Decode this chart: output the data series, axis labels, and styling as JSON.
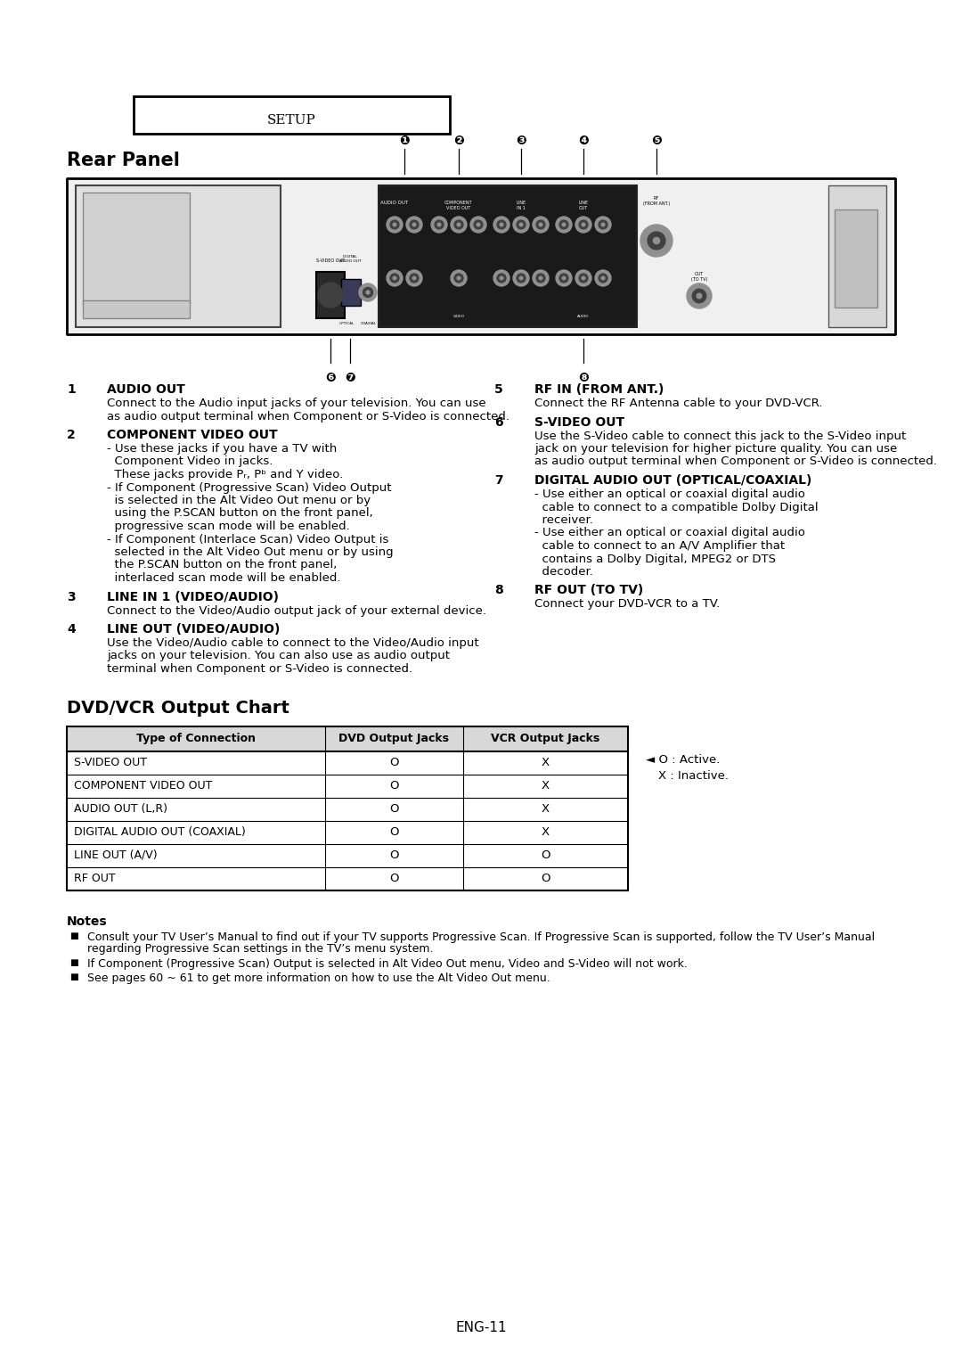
{
  "bg_color": "#ffffff",
  "setup_text": "SETUP",
  "rear_panel_title": "Rear Panel",
  "dvd_chart_title": "DVD/VCR Output Chart",
  "table_headers": [
    "Type of Connection",
    "DVD Output Jacks",
    "VCR Output Jacks"
  ],
  "table_rows": [
    [
      "S-VIDEO OUT",
      "O",
      "X"
    ],
    [
      "COMPONENT VIDEO OUT",
      "O",
      "X"
    ],
    [
      "AUDIO OUT (L,R)",
      "O",
      "X"
    ],
    [
      "DIGITAL AUDIO OUT (COAXIAL)",
      "O",
      "X"
    ],
    [
      "LINE OUT (A/V)",
      "O",
      "O"
    ],
    [
      "RF OUT",
      "O",
      "O"
    ]
  ],
  "notes_title": "Notes",
  "notes": [
    "Consult your TV User’s Manual to find out if your TV supports Progressive Scan. If Progressive Scan is supported, follow the TV User’s Manual regarding Progressive Scan settings in the TV’s menu system.",
    "If Component (Progressive Scan) Output is selected in Alt Video Out menu, Video and S-Video will not work.",
    "See pages 60 ~ 61 to get more information on how to use the Alt Video Out menu."
  ],
  "page_number": "ENG-11",
  "items_left": [
    {
      "num": "1",
      "title": "AUDIO OUT",
      "body": "Connect to the Audio input jacks of your television. You can use as audio output terminal when Component or S-Video is connected."
    },
    {
      "num": "2",
      "title": "COMPONENT VIDEO OUT",
      "body_lines": [
        "- Use these jacks if you have a TV with",
        "  Component Video in jacks.",
        "  These jacks provide Pᵣ, Pᵇ and Y video.",
        "- If Component (Progressive Scan) Video Output",
        "  is selected in the Alt Video Out menu or by",
        "  using the P.SCAN button on the front panel,",
        "  progressive scan mode will be enabled.",
        "- If Component (Interlace Scan) Video Output is",
        "  selected in the Alt Video Out menu or by using",
        "  the P.SCAN button on the front panel,",
        "  interlaced scan mode will be enabled."
      ]
    },
    {
      "num": "3",
      "title": "LINE IN 1 (VIDEO/AUDIO)",
      "body": "Connect to the Video/Audio output jack of your external device."
    },
    {
      "num": "4",
      "title": "LINE OUT (VIDEO/AUDIO)",
      "body": "Use the Video/Audio cable to connect to the Video/Audio input jacks on your television. You can also use as audio output terminal when Component or S-Video is connected."
    }
  ],
  "items_right": [
    {
      "num": "5",
      "title": "RF IN (FROM ANT.)",
      "body": "Connect the RF Antenna cable to your DVD-VCR."
    },
    {
      "num": "6",
      "title": "S-VIDEO OUT",
      "body": "Use the S-Video cable to connect this jack to the S-Video input  jack on your television for higher picture quality. You can use as audio output terminal when Component or S-Video is connected."
    },
    {
      "num": "7",
      "title": "DIGITAL AUDIO OUT (OPTICAL/COAXIAL)",
      "body_lines": [
        "- Use either an optical or coaxial digital audio",
        "  cable to connect to a compatible Dolby Digital",
        "  receiver.",
        "- Use either an optical or coaxial digital audio",
        "  cable to connect to an A/V Amplifier that",
        "  contains a Dolby Digital, MPEG2 or DTS",
        "  decoder."
      ]
    },
    {
      "num": "8",
      "title": "RF OUT (TO TV)",
      "body": "Connect your DVD-VCR to a TV."
    }
  ]
}
